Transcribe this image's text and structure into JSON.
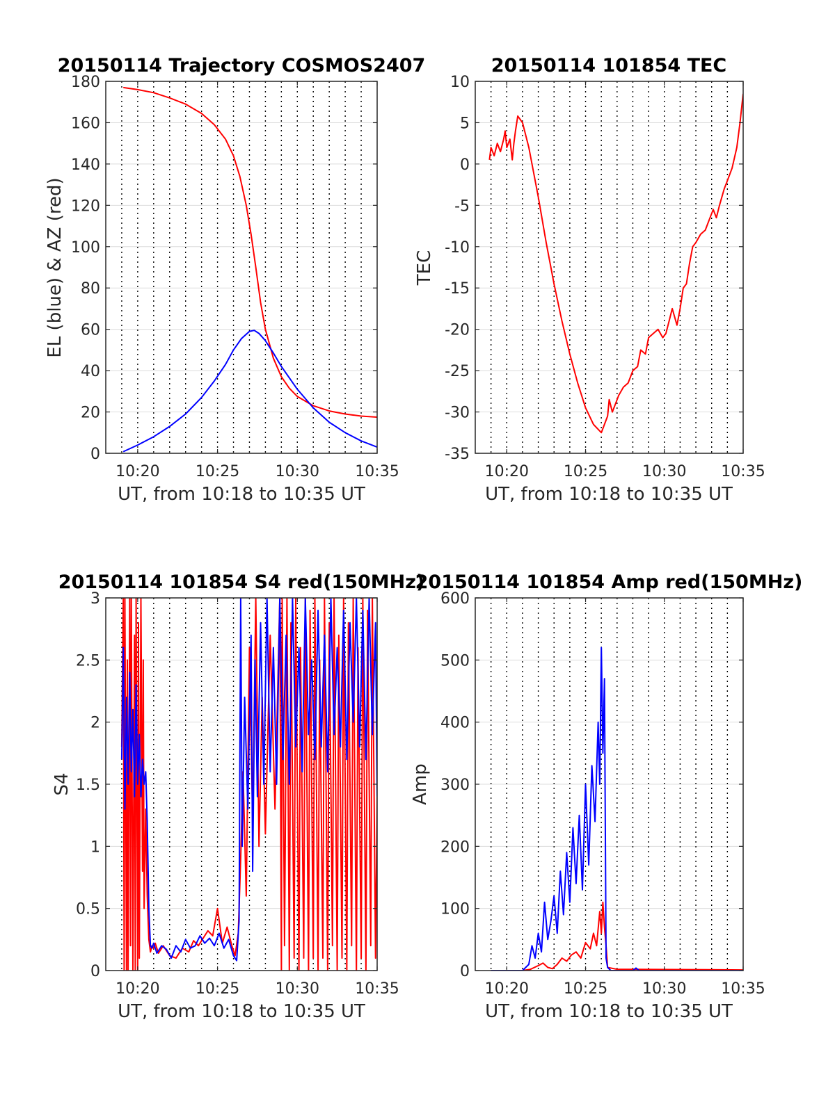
{
  "colors": {
    "red": "#ff0000",
    "blue": "#0000ff",
    "axis": "#262626",
    "hgrid": "#dcdcdc",
    "vgrid": "#000000"
  },
  "chart_data": [
    {
      "id": "trajectory",
      "type": "line",
      "title": "20150114 Trajectory COSMOS2407",
      "xlabel": "UT, from 10:18 to 10:35 UT",
      "ylabel": "EL (blue) & AZ (red)",
      "xlim": [
        18,
        35
      ],
      "ylim": [
        0,
        180
      ],
      "xticks": [
        20,
        25,
        30,
        35
      ],
      "xtick_labels": [
        "10:20",
        "10:25",
        "10:30",
        "10:35"
      ],
      "yticks": [
        0,
        20,
        40,
        60,
        80,
        100,
        120,
        140,
        160,
        180
      ],
      "ytick_labels": [
        "0",
        "20",
        "40",
        "60",
        "80",
        "100",
        "120",
        "140",
        "160",
        "180"
      ],
      "minute_gridlines": [
        19,
        20,
        21,
        22,
        23,
        24,
        25,
        26,
        27,
        28,
        29,
        30,
        31,
        32,
        33,
        34
      ],
      "grid": true,
      "series": [
        {
          "color": "red",
          "x": [
            19.1,
            20,
            21,
            22,
            23,
            24,
            24.8,
            25.5,
            26.0,
            26.4,
            26.8,
            27.1,
            27.4,
            27.7,
            28.0,
            28.5,
            29.0,
            29.5,
            30.0,
            31.0,
            32.0,
            33.0,
            34.0,
            35.0
          ],
          "y": [
            177,
            176,
            174.5,
            172,
            169,
            164.5,
            159,
            152,
            144,
            134,
            120,
            106,
            90,
            73,
            60,
            46,
            37,
            31.5,
            27.5,
            23,
            20.5,
            19,
            18,
            17.5
          ]
        },
        {
          "color": "blue",
          "x": [
            19.1,
            20,
            21,
            22,
            23,
            24,
            24.8,
            25.5,
            26.0,
            26.5,
            27.0,
            27.3,
            27.6,
            28.0,
            28.5,
            29.0,
            30.0,
            31.0,
            32.0,
            33.0,
            34.0,
            35.0
          ],
          "y": [
            0.8,
            4,
            8,
            13,
            19,
            27,
            35,
            43,
            50,
            55.5,
            59,
            59.5,
            58,
            54.5,
            48.5,
            42,
            31,
            22,
            15,
            10,
            6,
            3
          ]
        }
      ]
    },
    {
      "id": "tec",
      "type": "line",
      "title": "20150114 101854 TEC",
      "xlabel": "UT, from 10:18 to 10:35 UT",
      "ylabel": "TEC",
      "xlim": [
        18,
        35
      ],
      "ylim": [
        -35,
        10
      ],
      "xticks": [
        20,
        25,
        30,
        35
      ],
      "xtick_labels": [
        "10:20",
        "10:25",
        "10:30",
        "10:35"
      ],
      "yticks": [
        -35,
        -30,
        -25,
        -20,
        -15,
        -10,
        -5,
        0,
        5,
        10
      ],
      "ytick_labels": [
        "-35",
        "-30",
        "-25",
        "-20",
        "-15",
        "-10",
        "-5",
        "0",
        "5",
        "10"
      ],
      "minute_gridlines": [
        19,
        20,
        21,
        22,
        23,
        24,
        25,
        26,
        27,
        28,
        29,
        30,
        31,
        32,
        33,
        34
      ],
      "grid": true,
      "series": [
        {
          "color": "red",
          "x": [
            18.9,
            19.0,
            19.2,
            19.4,
            19.6,
            19.8,
            19.9,
            20.0,
            20.2,
            20.35,
            20.45,
            20.55,
            20.7,
            21.0,
            21.4,
            22.0,
            22.5,
            23.0,
            23.5,
            24.0,
            24.5,
            25.0,
            25.5,
            26.0,
            26.2,
            26.4,
            26.5,
            26.7,
            26.9,
            27.1,
            27.4,
            27.7,
            28.0,
            28.3,
            28.5,
            28.8,
            29.0,
            29.3,
            29.6,
            29.9,
            30.1,
            30.3,
            30.5,
            30.8,
            31.0,
            31.2,
            31.4,
            31.6,
            31.8,
            32.0,
            32.3,
            32.6,
            32.9,
            33.1,
            33.3,
            33.5,
            33.8,
            34.0,
            34.3,
            34.6,
            34.8,
            35.0
          ],
          "y": [
            0.5,
            2,
            1,
            2.5,
            1.5,
            3,
            4,
            2,
            3,
            0.5,
            2.5,
            4,
            5.8,
            5,
            2,
            -4,
            -9.5,
            -14.5,
            -19,
            -23,
            -26.5,
            -29.5,
            -31.5,
            -32.5,
            -31.5,
            -30.5,
            -28.5,
            -30,
            -29,
            -28,
            -27,
            -26.5,
            -25,
            -24.5,
            -22.5,
            -23,
            -21,
            -20.5,
            -20,
            -21,
            -20.5,
            -19,
            -17.5,
            -19.5,
            -17.5,
            -15,
            -14.5,
            -12,
            -10,
            -9.5,
            -8.5,
            -8,
            -6.5,
            -5.5,
            -6.5,
            -5,
            -3,
            -2,
            -0.5,
            2,
            5,
            8.5
          ]
        }
      ]
    },
    {
      "id": "s4",
      "type": "line",
      "title": "20150114 101854 S4 red(150MHz)",
      "xlabel": "UT, from 10:18 to 10:35 UT",
      "ylabel": "S4",
      "xlim": [
        18,
        35
      ],
      "ylim": [
        0,
        3
      ],
      "xticks": [
        20,
        25,
        30,
        35
      ],
      "xtick_labels": [
        "10:20",
        "10:25",
        "10:30",
        "10:35"
      ],
      "yticks": [
        0,
        0.5,
        1,
        1.5,
        2,
        2.5,
        3
      ],
      "ytick_labels": [
        "0",
        "0.5",
        "1",
        "1.5",
        "2",
        "2.5",
        "3"
      ],
      "minute_gridlines": [
        19,
        20,
        21,
        22,
        23,
        24,
        25,
        26,
        27,
        28,
        29,
        30,
        31,
        32,
        33,
        34
      ],
      "grid": true,
      "series": [
        {
          "color": "red",
          "x": [
            19.0,
            19.1,
            19.15,
            19.2,
            19.3,
            19.35,
            19.4,
            19.5,
            19.55,
            19.6,
            19.7,
            19.8,
            19.85,
            19.9,
            20.0,
            20.05,
            20.1,
            20.2,
            20.3,
            20.35,
            20.4,
            20.5,
            20.6,
            20.7,
            20.8,
            20.9,
            21.0,
            21.1,
            21.3,
            21.6,
            22.0,
            22.4,
            22.8,
            23.2,
            23.5,
            23.8,
            24.1,
            24.4,
            24.7,
            25.0,
            25.3,
            25.6,
            25.9,
            26.1,
            26.3,
            26.45,
            26.6,
            26.8,
            27.0,
            27.2,
            27.4,
            27.6,
            27.8,
            28.0,
            28.3,
            28.6,
            28.9,
            29.0,
            29.05,
            29.2,
            29.35,
            29.5,
            29.6,
            29.8,
            29.9,
            30.1,
            30.2,
            30.4,
            30.5,
            30.7,
            30.8,
            31.0,
            31.1,
            31.3,
            31.4,
            31.6,
            31.7,
            31.9,
            32.0,
            32.2,
            32.3,
            32.5,
            32.6,
            32.8,
            32.9,
            33.1,
            33.2,
            33.4,
            33.5,
            33.7,
            33.8,
            34.0,
            34.1,
            34.3,
            34.4,
            34.6,
            34.7,
            34.9,
            35.0
          ],
          "y": [
            1.8,
            3,
            0,
            3,
            0,
            2.5,
            0,
            3,
            0.2,
            3,
            0,
            2.7,
            0,
            3,
            0,
            2.8,
            0.1,
            3,
            0.8,
            2.5,
            0.5,
            1.3,
            0.6,
            0.25,
            0.15,
            0.2,
            0.18,
            0.22,
            0.14,
            0.2,
            0.12,
            0.1,
            0.18,
            0.15,
            0.24,
            0.2,
            0.26,
            0.32,
            0.28,
            0.5,
            0.22,
            0.35,
            0.2,
            0.12,
            0.3,
            0.9,
            1.6,
            0.6,
            2.6,
            1.2,
            3,
            1.0,
            2.2,
            1.1,
            2.7,
            1.3,
            3,
            0,
            3,
            0.2,
            3,
            0,
            2.8,
            0.1,
            3,
            0,
            2.6,
            0.1,
            3,
            0,
            2.9,
            0.1,
            3,
            0,
            2.5,
            0.1,
            3,
            0,
            2.8,
            0.2,
            3,
            0,
            2.7,
            0.1,
            3,
            0,
            2.8,
            0.2,
            3,
            0,
            2.6,
            0.1,
            3,
            0,
            2.9,
            0.2,
            3,
            0.1,
            1.4
          ]
        },
        {
          "color": "blue",
          "x": [
            19.0,
            19.1,
            19.2,
            19.3,
            19.4,
            19.5,
            19.6,
            19.7,
            19.8,
            19.9,
            20.0,
            20.1,
            20.2,
            20.3,
            20.4,
            20.5,
            20.6,
            20.7,
            20.8,
            20.9,
            21.0,
            21.2,
            21.5,
            21.8,
            22.1,
            22.4,
            22.7,
            23.0,
            23.3,
            23.6,
            23.9,
            24.2,
            24.5,
            24.8,
            25.1,
            25.4,
            25.7,
            26.0,
            26.2,
            26.35,
            26.45,
            26.55,
            26.7,
            26.9,
            27.1,
            27.2,
            27.35,
            27.5,
            27.7,
            27.9,
            28.1,
            28.3,
            28.5,
            28.7,
            28.9,
            29.1,
            29.3,
            29.5,
            29.7,
            29.9,
            30.1,
            30.3,
            30.5,
            30.7,
            30.9,
            31.1,
            31.3,
            31.5,
            31.7,
            31.9,
            32.1,
            32.3,
            32.5,
            32.7,
            32.9,
            33.1,
            33.3,
            33.5,
            33.7,
            33.9,
            34.1,
            34.3,
            34.5,
            34.7,
            34.9,
            35.0
          ],
          "y": [
            1.7,
            2.6,
            1.3,
            2.2,
            1.5,
            2.4,
            1.6,
            2.1,
            1.4,
            2.3,
            1.5,
            1.9,
            1.4,
            1.7,
            1.5,
            1.6,
            1.2,
            0.5,
            0.2,
            0.18,
            0.22,
            0.14,
            0.2,
            0.17,
            0.1,
            0.2,
            0.15,
            0.25,
            0.18,
            0.2,
            0.28,
            0.22,
            0.26,
            0.2,
            0.3,
            0.18,
            0.25,
            0.12,
            0.08,
            0.4,
            3,
            1.0,
            2.2,
            1.3,
            2.7,
            0.8,
            2.5,
            1.4,
            2.8,
            1.5,
            3,
            1.6,
            2.6,
            1.5,
            3,
            1.7,
            2.7,
            1.5,
            3,
            1.8,
            2.6,
            1.6,
            3,
            1.9,
            2.5,
            1.7,
            2.9,
            1.8,
            2.7,
            1.6,
            3,
            1.9,
            2.6,
            1.8,
            2.9,
            1.7,
            2.8,
            2.0,
            3,
            1.8,
            2.9,
            1.7,
            3,
            1.9,
            2.8,
            1.4
          ]
        }
      ]
    },
    {
      "id": "amp",
      "type": "line",
      "title": "20150114 101854 Amp red(150MHz)",
      "xlabel": "UT, from 10:18 to 10:35 UT",
      "ylabel": "Amp",
      "xlim": [
        18,
        35
      ],
      "ylim": [
        0,
        600
      ],
      "xticks": [
        20,
        25,
        30,
        35
      ],
      "xtick_labels": [
        "10:20",
        "10:25",
        "10:30",
        "10:35"
      ],
      "yticks": [
        0,
        100,
        200,
        300,
        400,
        500,
        600
      ],
      "ytick_labels": [
        "0",
        "100",
        "200",
        "300",
        "400",
        "500",
        "600"
      ],
      "minute_gridlines": [
        19,
        20,
        21,
        22,
        23,
        24,
        25,
        26,
        27,
        28,
        29,
        30,
        31,
        32,
        33,
        34
      ],
      "grid": true,
      "series": [
        {
          "color": "red",
          "x": [
            19.0,
            20.0,
            21.0,
            21.5,
            22.0,
            22.3,
            22.6,
            22.9,
            23.2,
            23.5,
            23.8,
            24.1,
            24.4,
            24.7,
            25.0,
            25.3,
            25.5,
            25.7,
            25.9,
            26.0,
            26.1,
            26.2,
            26.3,
            26.4,
            27.0,
            28.0,
            35.0
          ],
          "y": [
            0,
            0,
            0,
            2,
            8,
            12,
            5,
            3,
            10,
            20,
            15,
            25,
            30,
            20,
            45,
            35,
            60,
            40,
            95,
            60,
            110,
            70,
            40,
            5,
            2,
            2,
            1
          ]
        },
        {
          "color": "blue",
          "x": [
            19.0,
            20.0,
            21.0,
            21.4,
            21.6,
            21.8,
            22.0,
            22.2,
            22.4,
            22.6,
            22.8,
            23.0,
            23.2,
            23.4,
            23.6,
            23.8,
            24.0,
            24.2,
            24.4,
            24.6,
            24.8,
            25.0,
            25.2,
            25.4,
            25.6,
            25.8,
            25.9,
            26.0,
            26.1,
            26.2,
            26.3,
            26.4,
            26.6,
            27.0,
            28.0,
            28.2,
            28.4,
            30.0,
            35.0
          ],
          "y": [
            0,
            0,
            0,
            10,
            40,
            20,
            60,
            30,
            110,
            50,
            80,
            120,
            60,
            160,
            90,
            190,
            110,
            230,
            140,
            250,
            130,
            300,
            170,
            330,
            240,
            400,
            300,
            520,
            350,
            470,
            20,
            5,
            0,
            0,
            0,
            4,
            0,
            0,
            0
          ]
        }
      ]
    }
  ]
}
